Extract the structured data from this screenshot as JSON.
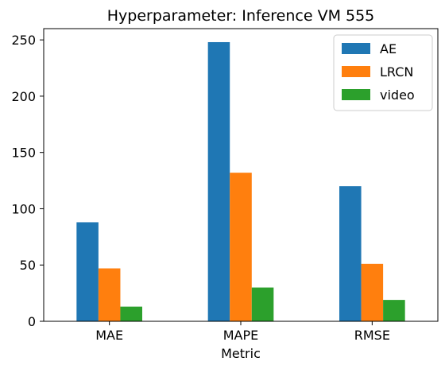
{
  "chart_data": {
    "type": "bar",
    "title": "Hyperparameter: Inference VM 555",
    "xlabel": "Metric",
    "ylabel": "",
    "categories": [
      "MAE",
      "MAPE",
      "RMSE"
    ],
    "series": [
      {
        "name": "AE",
        "color": "#1f77b4",
        "values": [
          88,
          248,
          120
        ]
      },
      {
        "name": "LRCN",
        "color": "#ff7f0e",
        "values": [
          47,
          132,
          51
        ]
      },
      {
        "name": "video",
        "color": "#2ca02c",
        "values": [
          13,
          30,
          19
        ]
      }
    ],
    "ylim": [
      0,
      260
    ],
    "yticks": [
      0,
      50,
      100,
      150,
      200,
      250
    ],
    "grid": false,
    "legend_position": "top-right"
  }
}
